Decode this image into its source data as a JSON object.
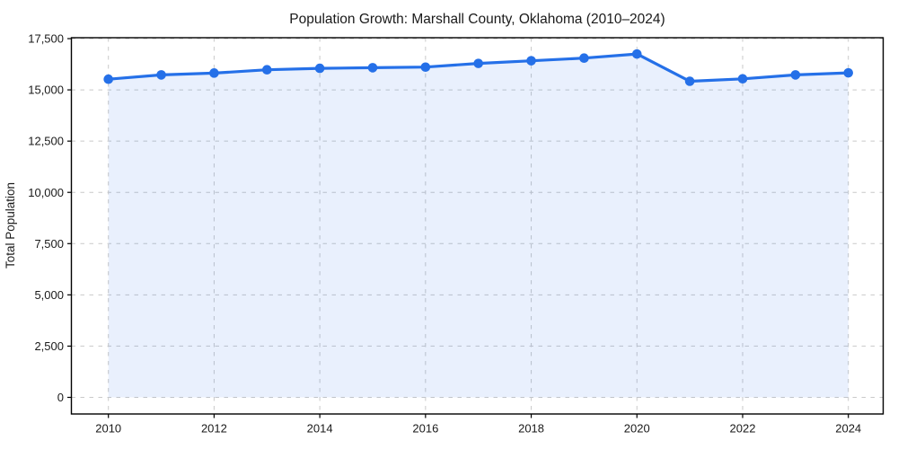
{
  "chart_data": {
    "type": "area",
    "title": "Population Growth: Marshall County, Oklahoma (2010–2024)",
    "xlabel": "",
    "ylabel": "Total Population",
    "x": [
      2010,
      2011,
      2012,
      2013,
      2014,
      2015,
      2016,
      2017,
      2018,
      2019,
      2020,
      2021,
      2022,
      2023,
      2024
    ],
    "values": [
      15520,
      15730,
      15820,
      15980,
      16050,
      16080,
      16110,
      16290,
      16420,
      16550,
      16750,
      15420,
      15540,
      15730,
      15830
    ],
    "series_name": "Total Population",
    "ylim": [
      0,
      17500
    ],
    "yticks": [
      0,
      2500,
      5000,
      7500,
      10000,
      12500,
      15000,
      17500
    ],
    "ytick_labels": [
      "0",
      "2,500",
      "5,000",
      "7,500",
      "10,000",
      "12,500",
      "15,000",
      "17,500"
    ],
    "xticks": [
      2010,
      2012,
      2014,
      2016,
      2018,
      2020,
      2022,
      2024
    ],
    "xtick_labels": [
      "2010",
      "2012",
      "2014",
      "2016",
      "2018",
      "2020",
      "2022",
      "2024"
    ],
    "grid": true,
    "grid_style": "dashed",
    "legend": false,
    "line_color": "#2570e8",
    "fill_color": "rgba(37,112,232,0.10)",
    "grid_color": "#c9c9c9",
    "frame_color": "#000000",
    "marker": "circle"
  }
}
